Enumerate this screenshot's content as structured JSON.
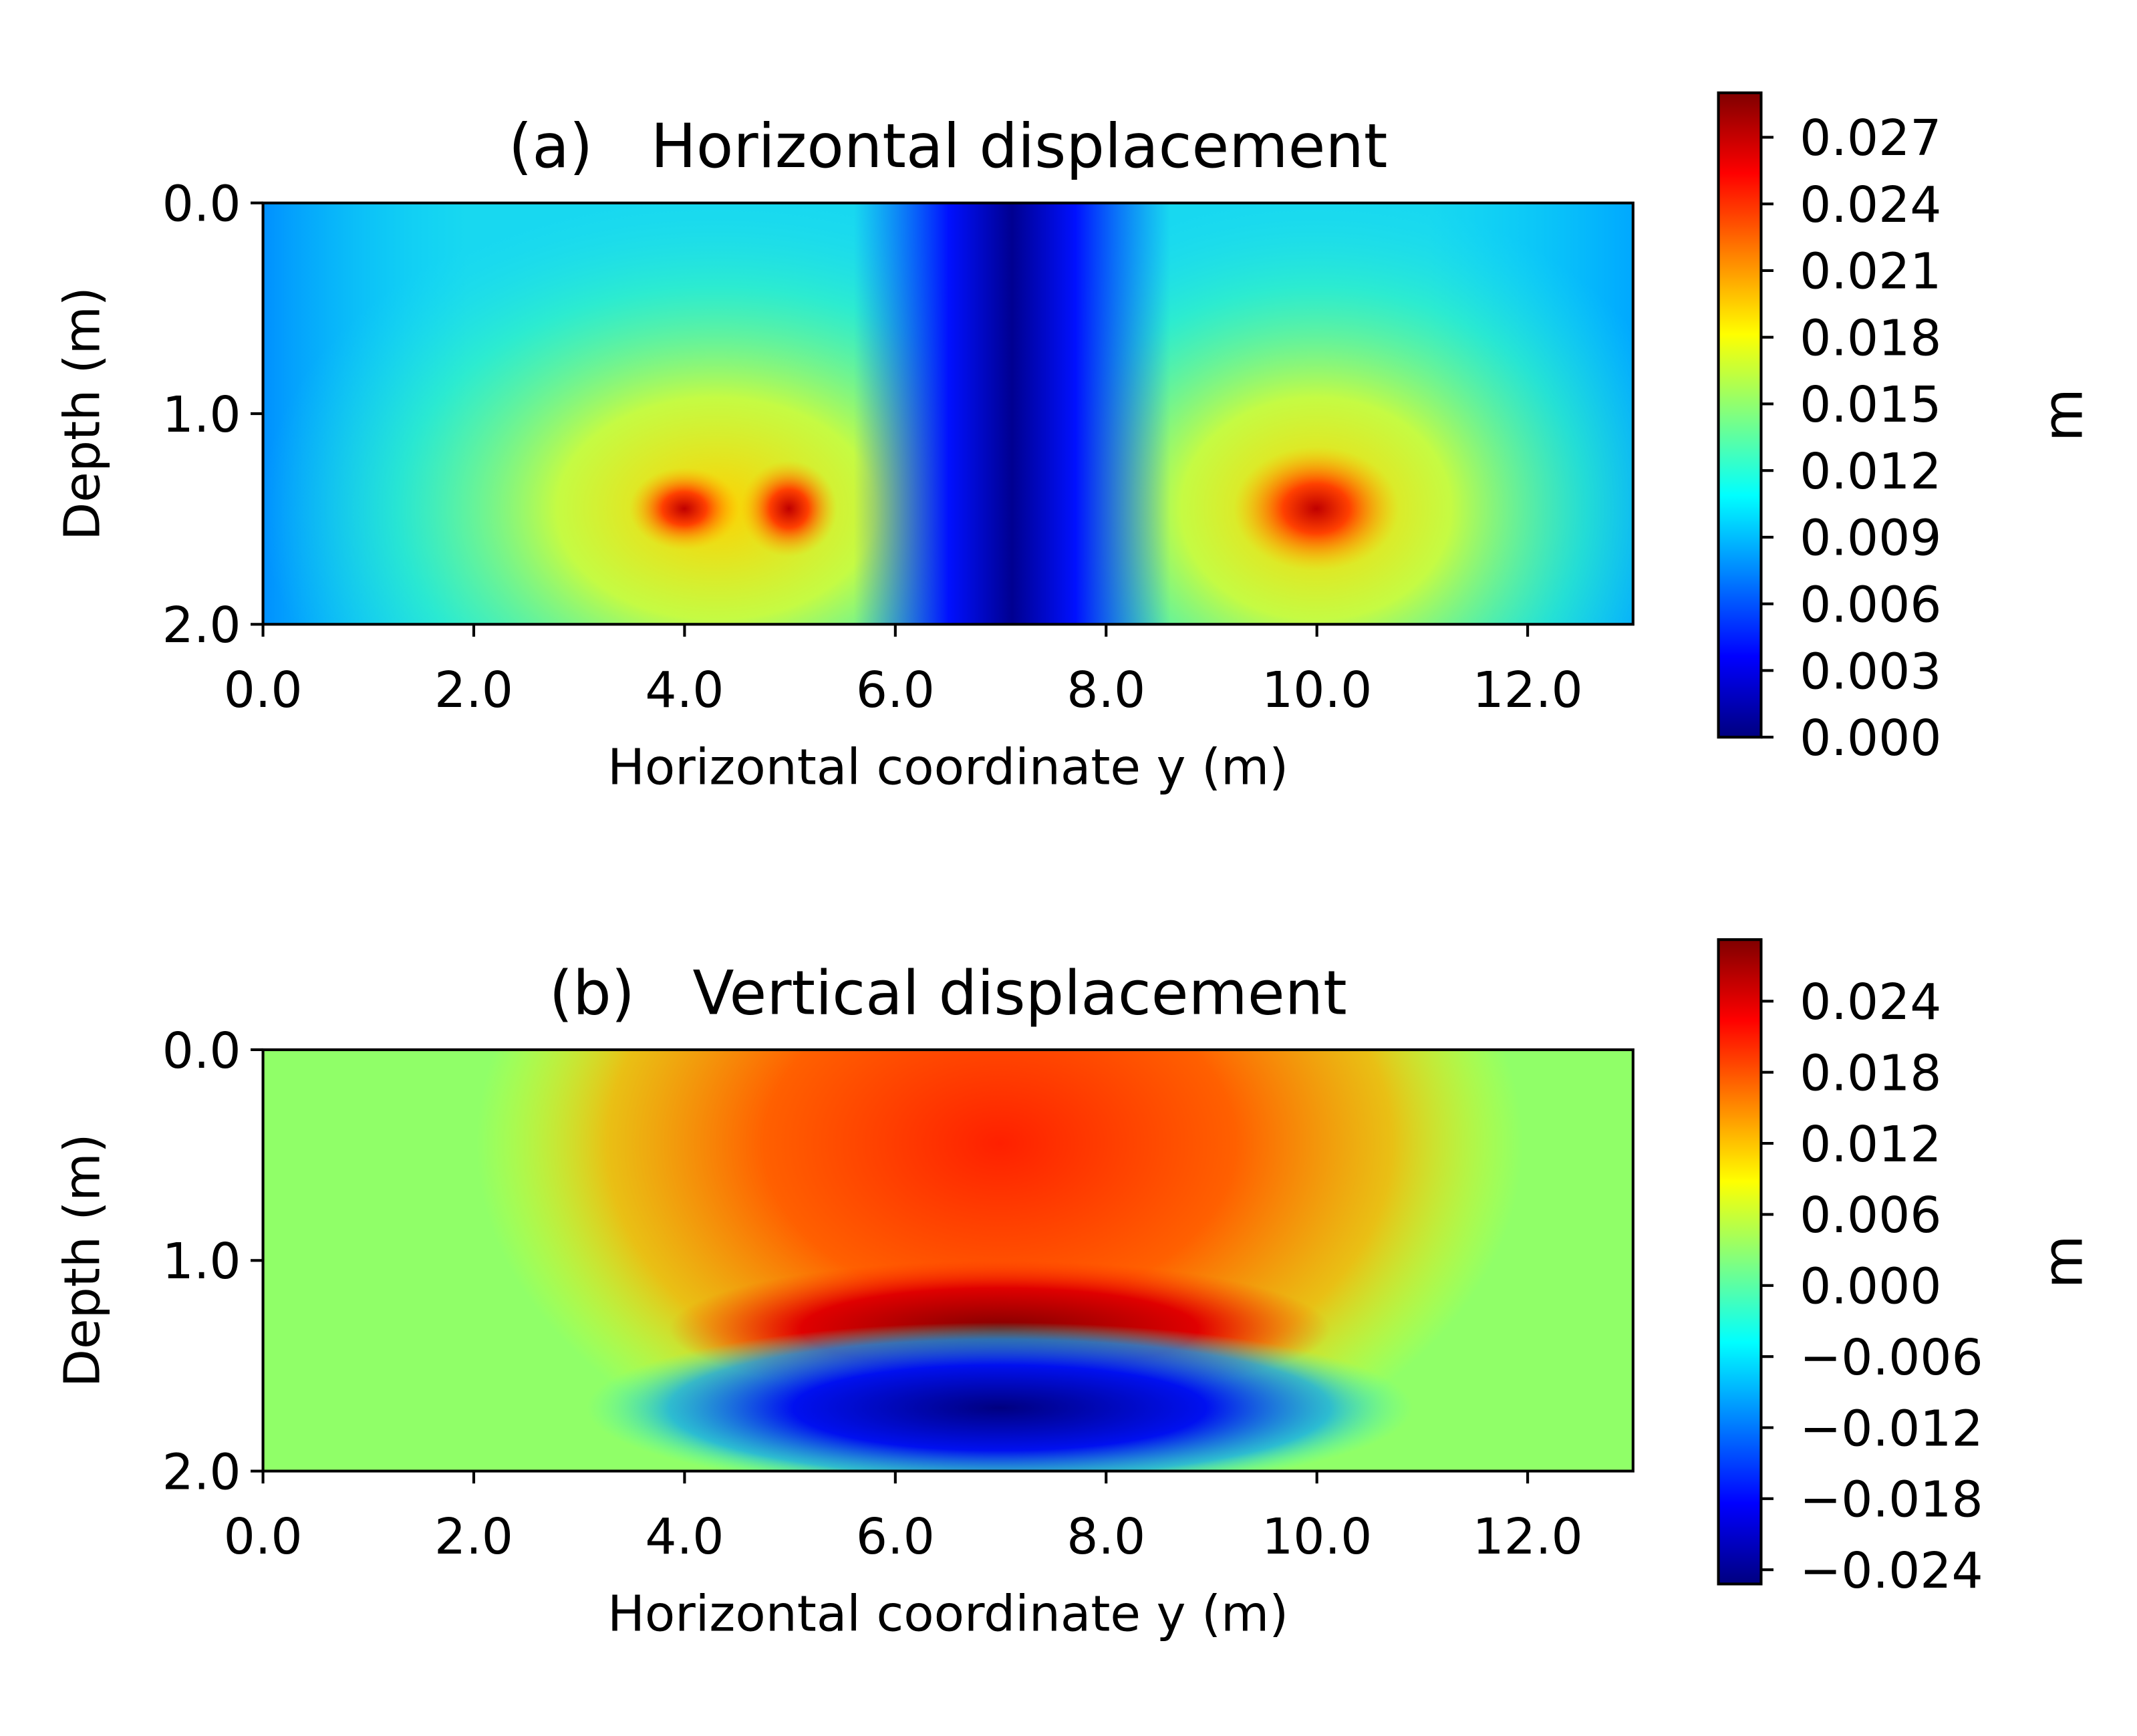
{
  "chart_data": [
    {
      "type": "contour",
      "title": "(a)   Horizontal displacement",
      "xlabel": "Horizontal coordinate y (m)",
      "ylabel": "Depth (m)",
      "xlim": [
        0,
        13
      ],
      "ylim": [
        2,
        0
      ],
      "xticks": [
        {
          "value": 0,
          "label": "0.0"
        },
        {
          "value": 2,
          "label": "2.0"
        },
        {
          "value": 4,
          "label": "4.0"
        },
        {
          "value": 6,
          "label": "6.0"
        },
        {
          "value": 8,
          "label": "8.0"
        },
        {
          "value": 10,
          "label": "10.0"
        },
        {
          "value": 12,
          "label": "12.0"
        }
      ],
      "yticks": [
        {
          "value": 0,
          "label": "0.0"
        },
        {
          "value": 1,
          "label": "1.0"
        },
        {
          "value": 2,
          "label": "2.0"
        }
      ],
      "colormap": "jet",
      "colorbar": {
        "label": "m",
        "lim": [
          0,
          0.029
        ],
        "ticks": [
          {
            "value": 0,
            "label": "0.000"
          },
          {
            "value": 0.003,
            "label": "0.003"
          },
          {
            "value": 0.006,
            "label": "0.006"
          },
          {
            "value": 0.009,
            "label": "0.009"
          },
          {
            "value": 0.012,
            "label": "0.012"
          },
          {
            "value": 0.015,
            "label": "0.015"
          },
          {
            "value": 0.018,
            "label": "0.018"
          },
          {
            "value": 0.021,
            "label": "0.021"
          },
          {
            "value": 0.024,
            "label": "0.024"
          },
          {
            "value": 0.027,
            "label": "0.027"
          }
        ]
      }
    },
    {
      "type": "contour",
      "title": "(b)   Vertical displacement",
      "xlabel": "Horizontal coordinate y (m)",
      "ylabel": "Depth (m)",
      "xlim": [
        0,
        13
      ],
      "ylim": [
        2,
        0
      ],
      "xticks": [
        {
          "value": 0,
          "label": "0.0"
        },
        {
          "value": 2,
          "label": "2.0"
        },
        {
          "value": 4,
          "label": "4.0"
        },
        {
          "value": 6,
          "label": "6.0"
        },
        {
          "value": 8,
          "label": "8.0"
        },
        {
          "value": 10,
          "label": "10.0"
        },
        {
          "value": 12,
          "label": "12.0"
        }
      ],
      "yticks": [
        {
          "value": 0,
          "label": "0.0"
        },
        {
          "value": 1,
          "label": "1.0"
        },
        {
          "value": 2,
          "label": "2.0"
        }
      ],
      "colormap": "jet",
      "colorbar": {
        "label": "m",
        "lim": [
          -0.0252,
          0.0292
        ],
        "ticks": [
          {
            "value": -0.024,
            "label": "−0.024"
          },
          {
            "value": -0.018,
            "label": "−0.018"
          },
          {
            "value": -0.012,
            "label": "−0.012"
          },
          {
            "value": -0.006,
            "label": "−0.006"
          },
          {
            "value": 0,
            "label": "0.000"
          },
          {
            "value": 0.006,
            "label": "0.006"
          },
          {
            "value": 0.012,
            "label": "0.012"
          },
          {
            "value": 0.018,
            "label": "0.018"
          },
          {
            "value": 0.024,
            "label": "0.024"
          }
        ]
      }
    }
  ]
}
